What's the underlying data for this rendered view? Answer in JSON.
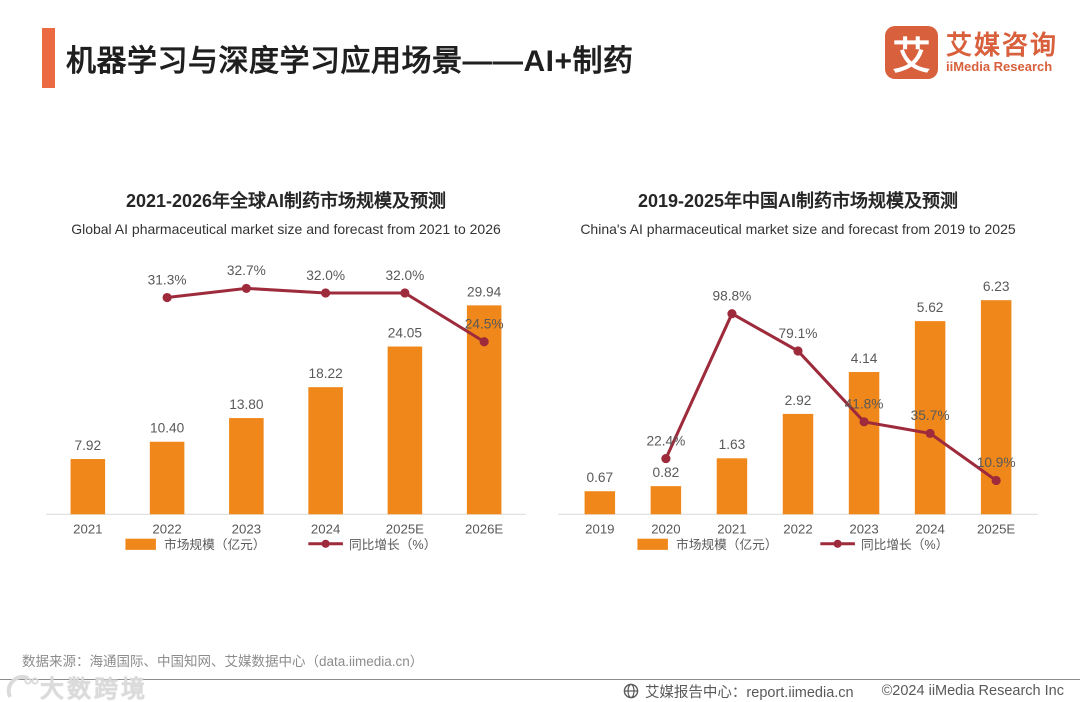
{
  "page": {
    "title": "机器学习与深度学习应用场景——AI+制药",
    "logo": {
      "glyph": "艾",
      "name_cn": "艾媒咨询",
      "name_en": "iiMedia Research"
    },
    "source_note": "数据来源：海通国际、中国知网、艾媒数据中心（data.iimedia.cn）",
    "watermark": "大数跨境",
    "footer": {
      "report_center": "艾媒报告中心：report.iimedia.cn",
      "copyright": "©2024  iiMedia Research  Inc"
    }
  },
  "colors": {
    "bar": "#F0871A",
    "line": "#9E2B3B",
    "accent": "#EC6A41",
    "logo": "#D8603C",
    "label": "#595959",
    "axis": "#D9D9D9"
  },
  "chart_data": [
    {
      "type": "bar+line",
      "title": "2021-2026年全球AI制药市场规模及预测",
      "subtitle": "Global AI pharmaceutical market size and forecast from 2021 to 2026",
      "categories": [
        "2021",
        "2022",
        "2023",
        "2024",
        "2025E",
        "2026E"
      ],
      "series": [
        {
          "name": "市场规模（亿元）",
          "type": "bar",
          "values": [
            7.92,
            10.4,
            13.8,
            18.22,
            24.05,
            29.94
          ]
        },
        {
          "name": "同比增长（%）",
          "type": "line",
          "values": [
            null,
            31.3,
            32.7,
            32.0,
            32.0,
            24.5
          ]
        }
      ],
      "bar_axis_max": 33.5,
      "line_axis_max": 35,
      "grid": false,
      "legend_position": "bottom"
    },
    {
      "type": "bar+line",
      "title": "2019-2025年中国AI制药市场规模及预测",
      "subtitle": "China's AI pharmaceutical market size and forecast from 2019 to 2025",
      "categories": [
        "2019",
        "2020",
        "2021",
        "2022",
        "2023",
        "2024",
        "2025E"
      ],
      "series": [
        {
          "name": "市场规模（亿元）",
          "type": "bar",
          "values": [
            0.67,
            0.82,
            1.63,
            2.92,
            4.14,
            5.62,
            6.23
          ]
        },
        {
          "name": "同比增长（%）",
          "type": "line",
          "values": [
            null,
            22.4,
            98.8,
            79.1,
            41.8,
            35.7,
            10.9
          ]
        }
      ],
      "bar_axis_max": 6.8,
      "line_axis_max": 120,
      "grid": false,
      "legend_position": "bottom"
    }
  ]
}
